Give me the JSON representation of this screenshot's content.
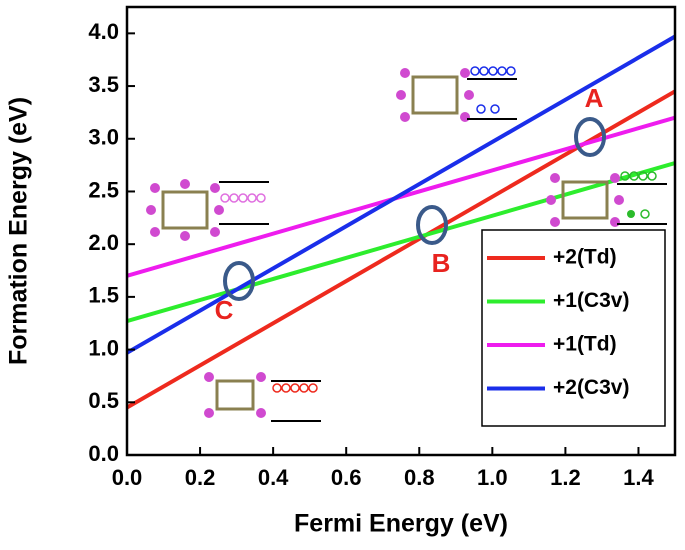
{
  "chart_data": {
    "type": "line",
    "x_label": "Fermi Energy (eV)",
    "y_label": "Formation Energy (eV)",
    "x": [
      0,
      1.5
    ],
    "series": [
      {
        "name": "+2(Td)",
        "color": "#ee2a1e",
        "values": [
          0.45,
          3.45
        ]
      },
      {
        "name": "+1(C3v)",
        "color": "#2ded2d",
        "values": [
          1.27,
          2.77
        ]
      },
      {
        "name": "+1(Td)",
        "color": "#ee1cee",
        "values": [
          1.7,
          3.2
        ]
      },
      {
        "name": "+2(C3v)",
        "color": "#1a2eea",
        "values": [
          0.97,
          3.97
        ]
      }
    ],
    "annotations": [
      "A",
      "B",
      "C"
    ],
    "xlim": [
      0,
      1.5
    ],
    "ylim": [
      0,
      4.25
    ],
    "xticks": [
      {
        "value": 0,
        "label": "0.0"
      },
      0.2,
      0.4,
      0.6,
      0.8,
      {
        "value": 1,
        "label": "1.0"
      },
      1.2,
      1.4
    ],
    "yticks": [
      {
        "value": 0,
        "label": "0.0"
      },
      0.5,
      {
        "value": 1,
        "label": "1.0"
      },
      1.5,
      {
        "value": 2,
        "label": "2.0"
      },
      2.5,
      {
        "value": 3,
        "label": "3.0"
      },
      3.5,
      {
        "value": 4,
        "label": "4.0"
      }
    ],
    "legend": "lower right"
  }
}
